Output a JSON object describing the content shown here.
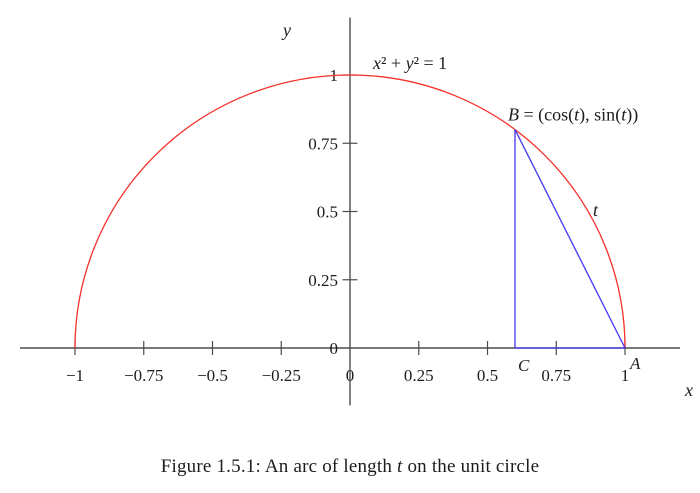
{
  "figure": {
    "caption": "Figure 1.5.1: An arc of length t on the unit circle"
  },
  "chart_data": {
    "type": "line",
    "title": "",
    "equation_label": "x² + y² = 1",
    "x_axis": {
      "label": "x",
      "tick_values": [
        -1,
        -0.75,
        -0.5,
        -0.25,
        0,
        0.25,
        0.5,
        0.75,
        1
      ],
      "tick_labels": [
        "−1",
        "−0.75",
        "−0.5",
        "−0.25",
        "0",
        "0.25",
        "0.5",
        "0.75",
        "1"
      ],
      "range": [
        -1.2,
        1.2
      ]
    },
    "y_axis": {
      "label": "y",
      "tick_values": [
        0,
        0.25,
        0.5,
        0.75,
        1
      ],
      "tick_labels": [
        "0",
        "0.25",
        "0.5",
        "0.75",
        "1"
      ],
      "range": [
        -0.21,
        1.21
      ]
    },
    "curve": {
      "name": "upper-unit-semicircle",
      "equation": "x^2 + y^2 = 1",
      "center": [
        0,
        0
      ],
      "radius": 1,
      "x_from": -1,
      "x_to": 1,
      "color": "#f53029"
    },
    "points": [
      {
        "name": "B",
        "label": "B = (cos(t), sin(t))",
        "x": 0.6,
        "y": 0.8
      },
      {
        "name": "C",
        "label": "C",
        "x": 0.6,
        "y": 0
      },
      {
        "name": "A",
        "label": "A",
        "x": 1,
        "y": 0
      }
    ],
    "segments": [
      {
        "name": "B-to-C",
        "from": [
          0.6,
          0.8
        ],
        "to": [
          0.6,
          0
        ]
      },
      {
        "name": "B-to-A",
        "from": [
          0.6,
          0.8
        ],
        "to": [
          1,
          0
        ]
      },
      {
        "name": "C-to-A",
        "from": [
          0.6,
          0
        ],
        "to": [
          1,
          0
        ]
      }
    ],
    "segment_color": "#4038ee",
    "arc_label": "t",
    "axis_color": "#4d4d4d",
    "text_color": "#1c1c1c",
    "grid": false,
    "legend": false
  }
}
